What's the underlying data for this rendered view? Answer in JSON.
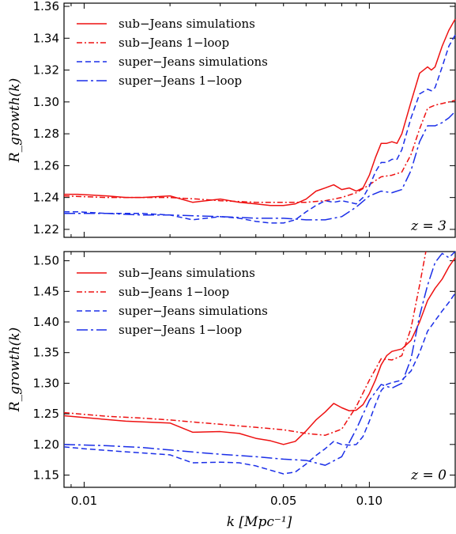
{
  "figure": {
    "xlabel": "k  [Mpc⁻¹]",
    "ylabel": "R_growth(k)"
  },
  "chart_data": [
    {
      "type": "line",
      "panel": "top",
      "xscale": "log",
      "xlim": [
        0.0085,
        0.2
      ],
      "ylim": [
        1.215,
        1.362
      ],
      "yticks": [
        1.22,
        1.24,
        1.26,
        1.28,
        1.3,
        1.32,
        1.34,
        1.36
      ],
      "ytick_labels": [
        "1.22",
        "1.24",
        "1.26",
        "1.28",
        "1.30",
        "1.32",
        "1.34",
        "1.36"
      ],
      "ylabel": "R_growth(k)",
      "annotation": "z = 3",
      "legend_position": "top-left",
      "series": [
        {
          "name": "sub−Jeans simulations",
          "color": "#ee1111",
          "dash": "solid",
          "points": [
            [
              0.0085,
              1.242
            ],
            [
              0.0095,
              1.242
            ],
            [
              0.012,
              1.241
            ],
            [
              0.014,
              1.24
            ],
            [
              0.016,
              1.24
            ],
            [
              0.02,
              1.241
            ],
            [
              0.024,
              1.237
            ],
            [
              0.03,
              1.239
            ],
            [
              0.035,
              1.237
            ],
            [
              0.04,
              1.236
            ],
            [
              0.045,
              1.235
            ],
            [
              0.05,
              1.235
            ],
            [
              0.055,
              1.236
            ],
            [
              0.06,
              1.239
            ],
            [
              0.065,
              1.244
            ],
            [
              0.07,
              1.246
            ],
            [
              0.075,
              1.248
            ],
            [
              0.08,
              1.245
            ],
            [
              0.085,
              1.246
            ],
            [
              0.09,
              1.244
            ],
            [
              0.095,
              1.246
            ],
            [
              0.1,
              1.254
            ],
            [
              0.105,
              1.265
            ],
            [
              0.11,
              1.274
            ],
            [
              0.115,
              1.274
            ],
            [
              0.12,
              1.275
            ],
            [
              0.125,
              1.274
            ],
            [
              0.13,
              1.28
            ],
            [
              0.14,
              1.3
            ],
            [
              0.15,
              1.318
            ],
            [
              0.16,
              1.322
            ],
            [
              0.165,
              1.32
            ],
            [
              0.17,
              1.322
            ],
            [
              0.18,
              1.335
            ],
            [
              0.19,
              1.345
            ],
            [
              0.2,
              1.352
            ]
          ]
        },
        {
          "name": "sub−Jeans 1−loop",
          "color": "#ee1111",
          "dash": "dashdot",
          "points": [
            [
              0.0085,
              1.241
            ],
            [
              0.012,
              1.24
            ],
            [
              0.016,
              1.24
            ],
            [
              0.02,
              1.24
            ],
            [
              0.025,
              1.239
            ],
            [
              0.03,
              1.238
            ],
            [
              0.04,
              1.237
            ],
            [
              0.05,
              1.237
            ],
            [
              0.06,
              1.237
            ],
            [
              0.07,
              1.238
            ],
            [
              0.08,
              1.24
            ],
            [
              0.09,
              1.243
            ],
            [
              0.1,
              1.248
            ],
            [
              0.11,
              1.253
            ],
            [
              0.12,
              1.254
            ],
            [
              0.13,
              1.256
            ],
            [
              0.14,
              1.267
            ],
            [
              0.15,
              1.283
            ],
            [
              0.16,
              1.296
            ],
            [
              0.17,
              1.298
            ],
            [
              0.18,
              1.299
            ],
            [
              0.19,
              1.3
            ],
            [
              0.2,
              1.301
            ]
          ]
        },
        {
          "name": "super−Jeans simulations",
          "color": "#1a2ee8",
          "dash": "dashed",
          "points": [
            [
              0.0085,
              1.231
            ],
            [
              0.0095,
              1.231
            ],
            [
              0.012,
              1.23
            ],
            [
              0.016,
              1.23
            ],
            [
              0.02,
              1.229
            ],
            [
              0.024,
              1.226
            ],
            [
              0.03,
              1.228
            ],
            [
              0.035,
              1.227
            ],
            [
              0.04,
              1.225
            ],
            [
              0.045,
              1.224
            ],
            [
              0.05,
              1.224
            ],
            [
              0.055,
              1.226
            ],
            [
              0.06,
              1.231
            ],
            [
              0.065,
              1.235
            ],
            [
              0.07,
              1.238
            ],
            [
              0.075,
              1.237
            ],
            [
              0.08,
              1.238
            ],
            [
              0.085,
              1.237
            ],
            [
              0.09,
              1.236
            ],
            [
              0.095,
              1.24
            ],
            [
              0.1,
              1.247
            ],
            [
              0.105,
              1.256
            ],
            [
              0.11,
              1.262
            ],
            [
              0.115,
              1.262
            ],
            [
              0.12,
              1.264
            ],
            [
              0.125,
              1.264
            ],
            [
              0.13,
              1.27
            ],
            [
              0.14,
              1.29
            ],
            [
              0.15,
              1.305
            ],
            [
              0.16,
              1.308
            ],
            [
              0.165,
              1.307
            ],
            [
              0.17,
              1.309
            ],
            [
              0.18,
              1.322
            ],
            [
              0.19,
              1.335
            ],
            [
              0.2,
              1.342
            ]
          ]
        },
        {
          "name": "super−Jeans 1−loop",
          "color": "#1a2ee8",
          "dash": "longdash",
          "points": [
            [
              0.0085,
              1.23
            ],
            [
              0.012,
              1.23
            ],
            [
              0.016,
              1.229
            ],
            [
              0.02,
              1.229
            ],
            [
              0.03,
              1.228
            ],
            [
              0.04,
              1.227
            ],
            [
              0.05,
              1.227
            ],
            [
              0.06,
              1.226
            ],
            [
              0.07,
              1.226
            ],
            [
              0.08,
              1.228
            ],
            [
              0.09,
              1.234
            ],
            [
              0.1,
              1.241
            ],
            [
              0.11,
              1.244
            ],
            [
              0.12,
              1.243
            ],
            [
              0.13,
              1.245
            ],
            [
              0.14,
              1.257
            ],
            [
              0.15,
              1.275
            ],
            [
              0.16,
              1.285
            ],
            [
              0.17,
              1.285
            ],
            [
              0.18,
              1.287
            ],
            [
              0.19,
              1.29
            ],
            [
              0.2,
              1.294
            ]
          ]
        }
      ]
    },
    {
      "type": "line",
      "panel": "bottom",
      "xscale": "log",
      "xlim": [
        0.0085,
        0.2
      ],
      "ylim": [
        1.13,
        1.515
      ],
      "yticks": [
        1.15,
        1.2,
        1.25,
        1.3,
        1.35,
        1.4,
        1.45,
        1.5
      ],
      "ytick_labels": [
        "1.15",
        "1.20",
        "1.25",
        "1.30",
        "1.35",
        "1.40",
        "1.45",
        "1.50"
      ],
      "xticks": [
        0.01,
        0.05,
        0.1
      ],
      "xtick_labels": [
        "0.01",
        "0.05",
        "0.10"
      ],
      "xlabel": "k  [Mpc⁻¹]",
      "ylabel": "R_growth(k)",
      "annotation": "z = 0",
      "legend_position": "top-left",
      "series": [
        {
          "name": "sub−Jeans simulations",
          "color": "#ee1111",
          "dash": "solid",
          "points": [
            [
              0.0085,
              1.247
            ],
            [
              0.01,
              1.244
            ],
            [
              0.014,
              1.238
            ],
            [
              0.02,
              1.235
            ],
            [
              0.024,
              1.22
            ],
            [
              0.03,
              1.221
            ],
            [
              0.035,
              1.218
            ],
            [
              0.04,
              1.21
            ],
            [
              0.045,
              1.206
            ],
            [
              0.05,
              1.2
            ],
            [
              0.055,
              1.205
            ],
            [
              0.06,
              1.222
            ],
            [
              0.065,
              1.24
            ],
            [
              0.07,
              1.253
            ],
            [
              0.075,
              1.267
            ],
            [
              0.08,
              1.26
            ],
            [
              0.085,
              1.255
            ],
            [
              0.09,
              1.256
            ],
            [
              0.095,
              1.265
            ],
            [
              0.1,
              1.283
            ],
            [
              0.105,
              1.305
            ],
            [
              0.11,
              1.33
            ],
            [
              0.115,
              1.345
            ],
            [
              0.12,
              1.352
            ],
            [
              0.13,
              1.356
            ],
            [
              0.14,
              1.37
            ],
            [
              0.15,
              1.4
            ],
            [
              0.16,
              1.435
            ],
            [
              0.17,
              1.455
            ],
            [
              0.18,
              1.47
            ],
            [
              0.19,
              1.49
            ],
            [
              0.2,
              1.505
            ]
          ]
        },
        {
          "name": "sub−Jeans 1−loop",
          "color": "#ee1111",
          "dash": "dashdot",
          "points": [
            [
              0.0085,
              1.252
            ],
            [
              0.012,
              1.246
            ],
            [
              0.016,
              1.243
            ],
            [
              0.02,
              1.24
            ],
            [
              0.025,
              1.236
            ],
            [
              0.03,
              1.233
            ],
            [
              0.04,
              1.228
            ],
            [
              0.05,
              1.224
            ],
            [
              0.06,
              1.218
            ],
            [
              0.07,
              1.215
            ],
            [
              0.08,
              1.225
            ],
            [
              0.09,
              1.262
            ],
            [
              0.1,
              1.305
            ],
            [
              0.11,
              1.34
            ],
            [
              0.12,
              1.338
            ],
            [
              0.13,
              1.345
            ],
            [
              0.14,
              1.39
            ],
            [
              0.15,
              1.46
            ],
            [
              0.16,
              1.53
            ]
          ]
        },
        {
          "name": "super−Jeans simulations",
          "color": "#1a2ee8",
          "dash": "dashed",
          "points": [
            [
              0.0085,
              1.196
            ],
            [
              0.01,
              1.193
            ],
            [
              0.014,
              1.188
            ],
            [
              0.02,
              1.183
            ],
            [
              0.024,
              1.17
            ],
            [
              0.03,
              1.171
            ],
            [
              0.035,
              1.17
            ],
            [
              0.04,
              1.165
            ],
            [
              0.045,
              1.158
            ],
            [
              0.05,
              1.152
            ],
            [
              0.055,
              1.155
            ],
            [
              0.06,
              1.168
            ],
            [
              0.065,
              1.182
            ],
            [
              0.07,
              1.193
            ],
            [
              0.075,
              1.205
            ],
            [
              0.08,
              1.2
            ],
            [
              0.085,
              1.199
            ],
            [
              0.09,
              1.2
            ],
            [
              0.095,
              1.213
            ],
            [
              0.1,
              1.238
            ],
            [
              0.105,
              1.265
            ],
            [
              0.11,
              1.288
            ],
            [
              0.115,
              1.298
            ],
            [
              0.12,
              1.301
            ],
            [
              0.13,
              1.305
            ],
            [
              0.14,
              1.32
            ],
            [
              0.15,
              1.35
            ],
            [
              0.16,
              1.385
            ],
            [
              0.17,
              1.402
            ],
            [
              0.18,
              1.418
            ],
            [
              0.19,
              1.432
            ],
            [
              0.2,
              1.447
            ]
          ]
        },
        {
          "name": "super−Jeans 1−loop",
          "color": "#1a2ee8",
          "dash": "longdash",
          "points": [
            [
              0.0085,
              1.2
            ],
            [
              0.012,
              1.198
            ],
            [
              0.016,
              1.195
            ],
            [
              0.02,
              1.191
            ],
            [
              0.025,
              1.187
            ],
            [
              0.03,
              1.184
            ],
            [
              0.04,
              1.18
            ],
            [
              0.05,
              1.176
            ],
            [
              0.06,
              1.174
            ],
            [
              0.07,
              1.166
            ],
            [
              0.08,
              1.18
            ],
            [
              0.09,
              1.225
            ],
            [
              0.1,
              1.272
            ],
            [
              0.11,
              1.298
            ],
            [
              0.12,
              1.292
            ],
            [
              0.13,
              1.3
            ],
            [
              0.14,
              1.34
            ],
            [
              0.15,
              1.41
            ],
            [
              0.16,
              1.46
            ],
            [
              0.17,
              1.497
            ],
            [
              0.18,
              1.512
            ],
            [
              0.19,
              1.505
            ],
            [
              0.2,
              1.515
            ]
          ]
        }
      ]
    }
  ]
}
